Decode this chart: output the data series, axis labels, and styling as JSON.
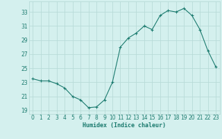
{
  "x": [
    0,
    1,
    2,
    3,
    4,
    5,
    6,
    7,
    8,
    9,
    10,
    11,
    12,
    13,
    14,
    15,
    16,
    17,
    18,
    19,
    20,
    21,
    22,
    23
  ],
  "y": [
    23.5,
    23.2,
    23.2,
    22.8,
    22.2,
    21.0,
    20.5,
    19.4,
    19.5,
    20.5,
    23.0,
    28.0,
    29.3,
    30.0,
    31.0,
    30.5,
    32.5,
    33.2,
    33.0,
    33.5,
    32.5,
    30.5,
    27.5,
    25.2
  ],
  "line_color": "#1a7a6e",
  "marker": "+",
  "marker_size": 3,
  "marker_linewidth": 0.8,
  "line_width": 0.8,
  "bg_color": "#d4f0ee",
  "grid_color": "#b8dbd8",
  "xlabel": "Humidex (Indice chaleur)",
  "ylabel_ticks": [
    19,
    21,
    23,
    25,
    27,
    29,
    31,
    33
  ],
  "xlim": [
    -0.5,
    23.5
  ],
  "ylim": [
    18.5,
    34.5
  ],
  "tick_fontsize": 5.5,
  "xlabel_fontsize": 6.0
}
